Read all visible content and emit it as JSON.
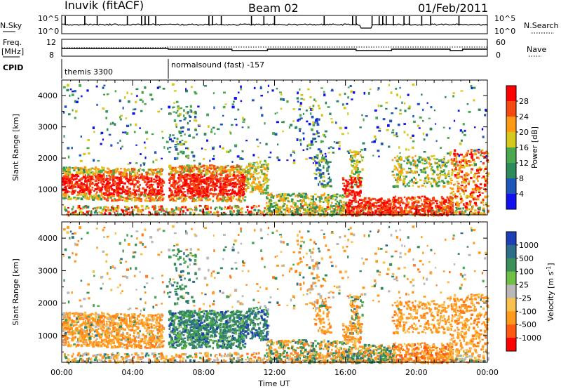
{
  "header": {
    "station": "Inuvik (fitACF)",
    "beam": "Beam 02",
    "date": "01/Feb/2011"
  },
  "top_panels": {
    "nsky_label": "N.Sky",
    "nsky_ticks": [
      "10^5",
      "10^0"
    ],
    "nsearch_label": "N.Search",
    "nsearch_ticks": [
      "10^5",
      "10^0"
    ],
    "freq_label": "Freq.",
    "freq_unit": "[MHz]",
    "freq_ticks": [
      "12",
      "8"
    ],
    "nave_label": "Nave",
    "nave_ticks": [
      "60",
      "0"
    ],
    "cpid_label": "CPID",
    "cpid_segments": [
      "themis 3300",
      "normalsound (fast) -157"
    ]
  },
  "chart_data": [
    {
      "type": "heatmap",
      "title": "",
      "ylabel": "Slant Range [km]",
      "xlabel": "",
      "x_range_hours": [
        0,
        24
      ],
      "ylim": [
        180,
        4500
      ],
      "yticks": [
        "1000",
        "2000",
        "3000",
        "4000"
      ],
      "colorbar": {
        "label": "Power [dB]",
        "ticks": [
          "4",
          "8",
          "12",
          "16",
          "20",
          "24",
          "28"
        ],
        "colors": [
          "#1010f0",
          "#1d55b8",
          "#2e8a5a",
          "#4aa84e",
          "#d6c81e",
          "#ff9a14",
          "#f44a12",
          "#ff0000"
        ]
      }
    },
    {
      "type": "heatmap",
      "title": "",
      "ylabel": "Slant Range [km]",
      "xlabel": "Time UT",
      "x_range_hours": [
        0,
        24
      ],
      "ylim": [
        180,
        4500
      ],
      "yticks": [
        "1000",
        "2000",
        "3000",
        "4000"
      ],
      "xticks": [
        "00:00",
        "04:00",
        "08:00",
        "12:00",
        "16:00",
        "20:00",
        "00:00"
      ],
      "colorbar": {
        "label": "Velocity [m s",
        "label_sup": "-1",
        "label_end": "]",
        "ticks": [
          "1000",
          "500",
          "100",
          "25",
          "-25",
          "-100",
          "-500",
          "-1000"
        ],
        "colors": [
          "#1c3fb8",
          "#2e6d8a",
          "#3b8f5a",
          "#6fc044",
          "#b8b8b8",
          "#f8c14e",
          "#ff9a1e",
          "#ff5a12",
          "#ff0000"
        ]
      }
    }
  ]
}
